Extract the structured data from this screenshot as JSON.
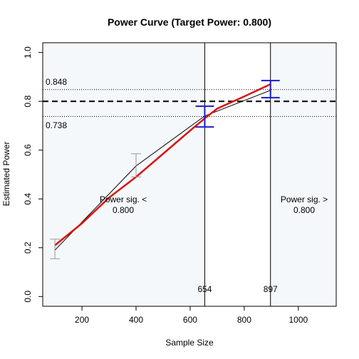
{
  "chart_data": {
    "type": "line",
    "title": "Power Curve (Target Power: 0.800)",
    "xlabel": "Sample Size",
    "ylabel": "Estimated Power",
    "xlim": [
      55,
      1140
    ],
    "ylim": [
      -0.04,
      1.04
    ],
    "x_ticks": [
      200,
      400,
      600,
      800,
      1000
    ],
    "y_ticks": [
      0.0,
      0.2,
      0.4,
      0.6,
      0.8,
      1.0
    ],
    "x_tick_labels": [
      "200",
      "400",
      "600",
      "800",
      "1000"
    ],
    "y_tick_labels": [
      "0.0",
      "0.2",
      "0.4",
      "0.6",
      "0.8",
      "1.0"
    ],
    "target_power": 0.8,
    "ci_band": {
      "lower": 0.738,
      "upper": 0.848,
      "lower_label": "0.738",
      "upper_label": "0.848"
    },
    "series": [
      {
        "name": "",
        "color": "#000000",
        "x": [
          100,
          400,
          654,
          897
        ],
        "y": [
          0.19,
          0.535,
          0.74,
          0.845
        ]
      },
      {
        "name": "",
        "color": "#dd1111",
        "x": [
          100,
          200,
          300,
          400,
          500,
          600,
          654,
          700,
          800,
          897
        ],
        "y": [
          0.21,
          0.3,
          0.405,
          0.49,
          0.585,
          0.68,
          0.73,
          0.77,
          0.82,
          0.87
        ]
      }
    ],
    "error_bars": [
      {
        "x": 100,
        "center": 0.19,
        "lo": 0.155,
        "hi": 0.235,
        "color": "#999999"
      },
      {
        "x": 400,
        "center": 0.535,
        "lo": 0.49,
        "hi": 0.585,
        "color": "#999999"
      },
      {
        "x": 654,
        "center": 0.74,
        "lo": 0.695,
        "hi": 0.78,
        "color": "#1a1acc"
      },
      {
        "x": 897,
        "center": 0.845,
        "lo": 0.815,
        "hi": 0.885,
        "color": "#1a1acc"
      }
    ],
    "vertical_lines": [
      {
        "x": 654,
        "label": "654"
      },
      {
        "x": 897,
        "label": "897"
      }
    ],
    "region_labels": {
      "left": [
        "Power sig. <",
        "0.800"
      ],
      "right": [
        "Power sig. >",
        "0.800"
      ]
    },
    "shade_color": "#f4f8fa",
    "grid": false
  }
}
